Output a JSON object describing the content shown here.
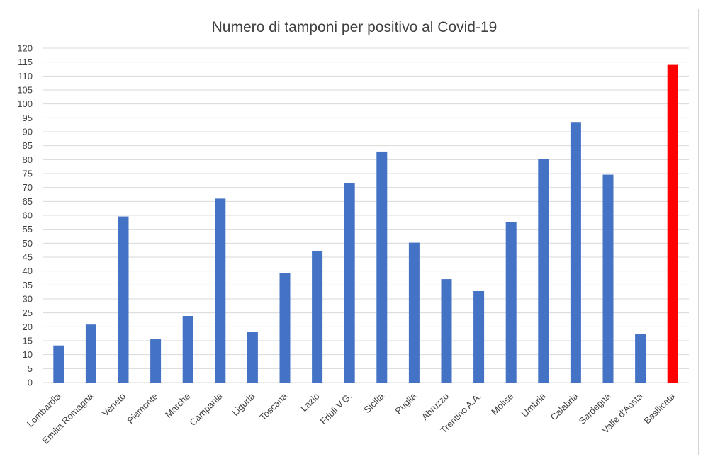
{
  "chart_data": {
    "type": "bar",
    "title": "Numero di tamponi per positivo al Covid-19",
    "xlabel": "",
    "ylabel": "",
    "ylim": [
      0,
      120
    ],
    "ytick_step": 5,
    "grid": true,
    "legend": "none",
    "bar_color": "#4472c4",
    "highlight_color": "#ff0000",
    "highlight_category": "Basilicata",
    "categories": [
      "Lombardia",
      "Emilia Romagna",
      "Veneto",
      "Piemonte",
      "Marche",
      "Campania",
      "Liguria",
      "Toscana",
      "Lazio",
      "Friuli V.G.",
      "Sicilia",
      "Puglia",
      "Abruzzo",
      "Trentino A.A.",
      "Molise",
      "Umbria",
      "Calabria",
      "Sardegna",
      "Valle d'Aosta",
      "Basilicata"
    ],
    "values": [
      13.3,
      20.8,
      59.6,
      15.5,
      23.9,
      66.0,
      18.1,
      39.3,
      47.3,
      71.5,
      82.9,
      50.2,
      37.1,
      32.8,
      57.6,
      80.1,
      93.5,
      74.6,
      17.5,
      114.0
    ]
  }
}
